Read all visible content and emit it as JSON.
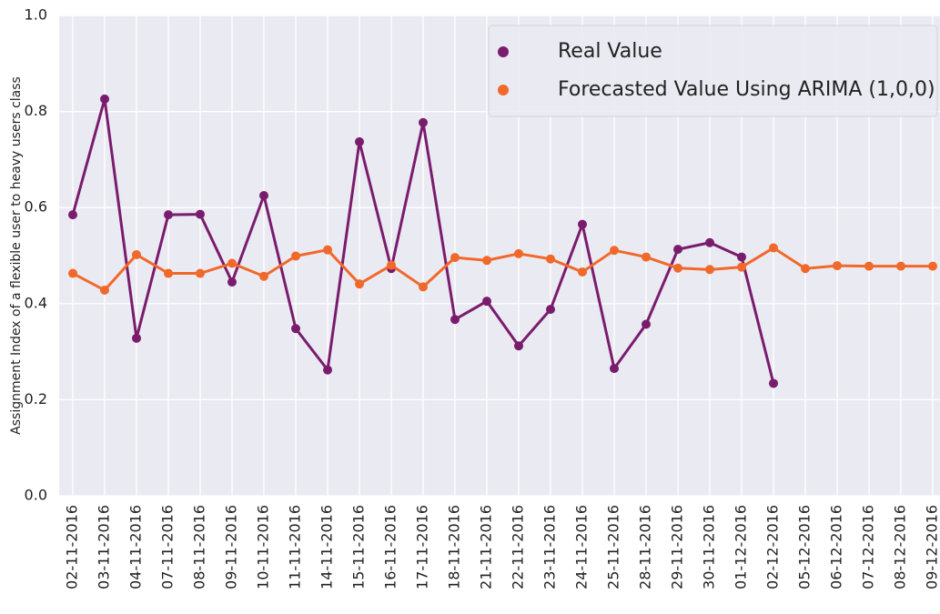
{
  "chart_data": {
    "type": "line",
    "y_label": "Assignment Index of a flexible user to heavy users class",
    "categories": [
      "02-11-2016",
      "03-11-2016",
      "04-11-2016",
      "07-11-2016",
      "08-11-2016",
      "09-11-2016",
      "10-11-2016",
      "11-11-2016",
      "14-11-2016",
      "15-11-2016",
      "16-11-2016",
      "17-11-2016",
      "18-11-2016",
      "21-11-2016",
      "22-11-2016",
      "23-11-2016",
      "24-11-2016",
      "25-11-2016",
      "28-11-2016",
      "29-11-2016",
      "30-11-2016",
      "01-12-2016",
      "02-12-2016",
      "05-12-2016",
      "06-12-2016",
      "07-12-2016",
      "08-12-2016",
      "09-12-2016"
    ],
    "series": [
      {
        "name": "Real Value",
        "color": "#7a1c6d",
        "values": [
          0.585,
          0.826,
          0.328,
          0.585,
          0.586,
          0.445,
          0.625,
          0.348,
          0.262,
          0.737,
          0.473,
          0.777,
          0.367,
          0.405,
          0.312,
          0.388,
          0.565,
          0.265,
          0.357,
          0.513,
          0.527,
          0.497,
          0.234,
          null,
          null,
          null,
          null,
          null
        ]
      },
      {
        "name": "Forecasted Value Using ARIMA (1,0,0)",
        "color": "#f0692a",
        "values": [
          0.463,
          0.428,
          0.502,
          0.463,
          0.463,
          0.484,
          0.457,
          0.499,
          0.512,
          0.441,
          0.48,
          0.435,
          0.496,
          0.49,
          0.504,
          0.493,
          0.466,
          0.511,
          0.497,
          0.474,
          0.471,
          0.476,
          0.516,
          0.473,
          0.479,
          0.478,
          0.478,
          0.478
        ]
      }
    ],
    "ylim": [
      0,
      1
    ],
    "yticks": [
      {
        "value": 0,
        "label": "0.0"
      },
      0.2,
      0.4,
      0.6,
      0.8,
      {
        "value": 1,
        "label": "1.0"
      }
    ],
    "grid": true,
    "legend": "upper right"
  }
}
